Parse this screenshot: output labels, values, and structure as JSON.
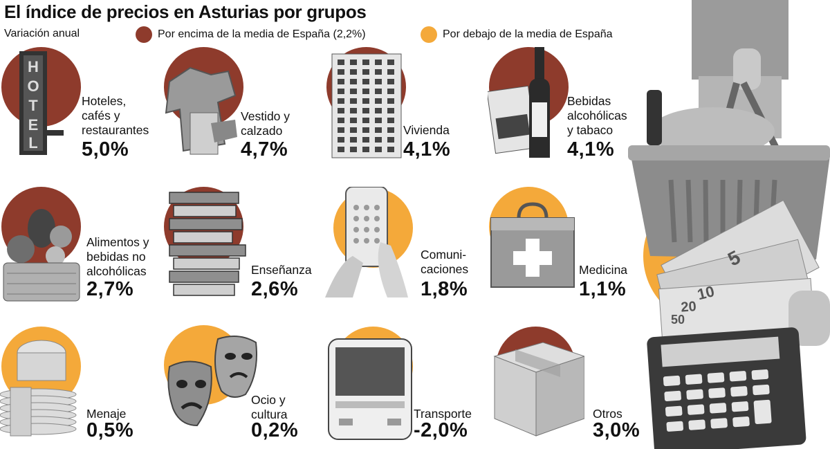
{
  "title": "El índice de precios en Asturias por grupos",
  "subtitle": "Variación anual",
  "legend": {
    "above": {
      "label": "Por encima de la media de España (2,2%)",
      "color": "#8e3b2c"
    },
    "below": {
      "label": "Por debajo de la media de España",
      "color": "#f4a93a"
    }
  },
  "groups": [
    {
      "label": "Hoteles,\ncafés y\nrestaurantes",
      "value": "5,0%",
      "status": "above",
      "icon": "hotel-sign-icon"
    },
    {
      "label": "Vestido y\ncalzado",
      "value": "4,7%",
      "status": "above",
      "icon": "clothing-icon"
    },
    {
      "label": "Vivienda",
      "value": "4,1%",
      "status": "above",
      "icon": "building-icon"
    },
    {
      "label": "Bebidas\nalcohólicas\ny tabaco",
      "value": "4,1%",
      "status": "above",
      "icon": "wine-cigarettes-icon"
    },
    {
      "label": "Alimentos y\nbebidas no\nalcohólicas",
      "value": "2,7%",
      "status": "above",
      "icon": "food-basket-icon"
    },
    {
      "label": "Enseñanza",
      "value": "2,6%",
      "status": "above",
      "icon": "books-icon"
    },
    {
      "label": "Comuni-\ncaciones",
      "value": "1,8%",
      "status": "below",
      "icon": "smartphone-icon"
    },
    {
      "label": "Medicina",
      "value": "1,1%",
      "status": "below",
      "icon": "first-aid-kit-icon"
    },
    {
      "label": "Menaje",
      "value": "0,5%",
      "status": "below",
      "icon": "dishes-icon"
    },
    {
      "label": "Ocio y\ncultura",
      "value": "0,2%",
      "status": "below",
      "icon": "theater-masks-icon"
    },
    {
      "label": "Transporte",
      "value": "-2,0%",
      "status": "below",
      "icon": "bus-icon"
    },
    {
      "label": "Otros",
      "value": "3,0%",
      "status": "above",
      "icon": "box-icon"
    }
  ]
}
